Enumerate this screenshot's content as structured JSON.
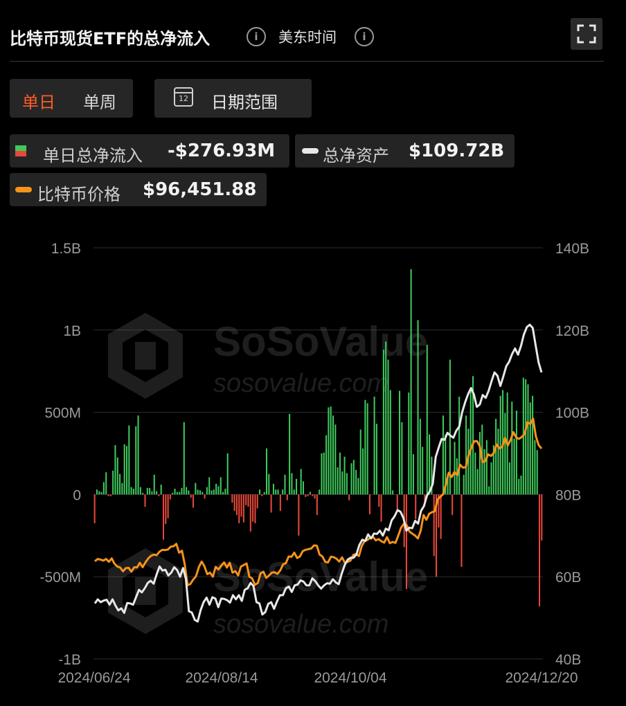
{
  "header": {
    "title": "比特币现货ETF的总净流入",
    "timezone": "美东时间"
  },
  "toggle": {
    "daily": "单日",
    "weekly": "单周",
    "active": "daily"
  },
  "range_button": {
    "label": "日期范围",
    "calendar_day": "12"
  },
  "legend": [
    {
      "label": "单日总净流入",
      "value": "-$276.93M",
      "icon": "green-red-square"
    },
    {
      "label": "总净资产",
      "value": "$109.72B",
      "icon": "white-line"
    },
    {
      "label": "比特币价格",
      "value": "$96,451.88",
      "icon": "orange-line"
    }
  ],
  "watermark": {
    "brand": "SoSoValue",
    "url": "sosovalue.com"
  },
  "colors": {
    "inflow": "#3ec95b",
    "outflow": "#e8483a",
    "assets": "#e8e8e8",
    "price": "#f7931a",
    "accent": "#ff5c2a"
  },
  "chart_data": {
    "type": "bar+line",
    "x_start": "2024/06/24",
    "x_end": "2024/12/20",
    "x_tick_labels": [
      "2024/06/24",
      "2024/08/14",
      "2024/10/04",
      "2024/12/20"
    ],
    "left_axis": {
      "ticks": [
        "1.5B",
        "1B",
        "500M",
        "0",
        "-500M",
        "-1B"
      ],
      "range_millions": [
        -1000,
        1500
      ]
    },
    "right_axis": {
      "ticks": [
        "140B",
        "120B",
        "100B",
        "80B",
        "60B",
        "40B"
      ],
      "range_billions": [
        40,
        140
      ]
    },
    "series": [
      {
        "type": "bar",
        "name": "单日总净流入",
        "unit": "USD millions",
        "values": [
          -175,
          30,
          20,
          15,
          75,
          135,
          -10,
          -10,
          145,
          300,
          225,
          125,
          70,
          305,
          295,
          420,
          45,
          35,
          415,
          480,
          45,
          10,
          -75,
          40,
          40,
          20,
          120,
          20,
          -10,
          60,
          -275,
          -180,
          -145,
          -30,
          10,
          35,
          15,
          15,
          40,
          440,
          45,
          25,
          -20,
          -80,
          70,
          30,
          25,
          15,
          -25,
          45,
          105,
          25,
          30,
          65,
          50,
          105,
          15,
          35,
          250,
          0,
          -50,
          -100,
          -125,
          -175,
          -135,
          -170,
          -65,
          -75,
          -225,
          -165,
          -175,
          -85,
          30,
          -10,
          15,
          280,
          125,
          -110,
          65,
          30,
          30,
          -100,
          30,
          120,
          -35,
          490,
          130,
          30,
          95,
          -250,
          155,
          80,
          -15,
          -10,
          15,
          -10,
          -25,
          -125,
          30,
          250,
          255,
          360,
          530,
          535,
          480,
          425,
          165,
          255,
          140,
          230,
          130,
          -35,
          190,
          210,
          150,
          100,
          395,
          280,
          575,
          555,
          -120,
          0,
          595,
          430,
          -75,
          -165,
          880,
          930,
          820,
          635,
          25,
          0,
          -90,
          630,
          440,
          -320,
          -575,
          620,
          1370,
          245,
          -150,
          1060,
          460,
          290,
          -50,
          910,
          365,
          230,
          -375,
          -500,
          -200,
          -270,
          480,
          365,
          125,
          820,
          -125,
          320,
          220,
          595,
          -440,
          120,
          480,
          400,
          650,
          720,
          255,
          155,
          380,
          425,
          275,
          330,
          50,
          195,
          300,
          460,
          400,
          600,
          635,
          495,
          620,
          195,
          565,
          340,
          510,
          95,
          115,
          710,
          700,
          670,
          560,
          600,
          330,
          270,
          -680,
          -280
        ]
      },
      {
        "type": "line",
        "name": "总净资产",
        "unit": "USD billions",
        "values": [
          53.5,
          54.5,
          53.8,
          54.2,
          54.4,
          53.2,
          54.5,
          53.0,
          51.8,
          52.3,
          51.2,
          53.6,
          53.5,
          53.2,
          55.0,
          56.8,
          56.2,
          57.2,
          58.5,
          59.0,
          58.3,
          60.5,
          62.5,
          61.5,
          61.7,
          60.3,
          61.0,
          62.3,
          61.6,
          60.0,
          62.1,
          59.4,
          51.6,
          51.3,
          49.5,
          49.1,
          51.9,
          53.8,
          54.9,
          53.2,
          55.0,
          54.7,
          52.6,
          54.7,
          54.6,
          54.3,
          53.7,
          55.5,
          54.5,
          55.5,
          54.1,
          56.8,
          57.2,
          58.5,
          57.7,
          53.8,
          53.5,
          50.8,
          51.4,
          53.4,
          53.8,
          52.2,
          54.0,
          55.5,
          55.5,
          57.2,
          57.6,
          56.3,
          57.9,
          58.1,
          59.1,
          58.8,
          57.9,
          57.9,
          59.6,
          58.9,
          57.9,
          57.1,
          57.9,
          58.4,
          58.3,
          59.4,
          58.6,
          58.2,
          60.7,
          62.8,
          64.1,
          64.6,
          64.6,
          65.4,
          67.7,
          69.0,
          68.7,
          70.3,
          69.3,
          70.5,
          70.4,
          71.2,
          70.0,
          71.7,
          71.3,
          73.7,
          74.7,
          76.2,
          75.8,
          74.3,
          71.2,
          71.9,
          71.8,
          73.6,
          72.9,
          76.0,
          77.2,
          79.7,
          80.8,
          82.6,
          89.1,
          91.4,
          93.5,
          93.3,
          95.0,
          94.3,
          93.8,
          95.5,
          96.5,
          100.0,
          102.4,
          104.4,
          105.9,
          104.3,
          101.3,
          101.9,
          104.2,
          103.5,
          105.2,
          107.6,
          109.7,
          108.9,
          106.4,
          108.7,
          111.2,
          112.3,
          114.2,
          115.5,
          114.0,
          116.1,
          118.9,
          120.7,
          121.3,
          120.5,
          116.3,
          112.1,
          109.7
        ]
      },
      {
        "type": "line",
        "name": "比特币价格",
        "unit": "USD thousands",
        "values": [
          60.9,
          61.6,
          61.4,
          61.1,
          61.6,
          60.7,
          61.8,
          60.1,
          59.2,
          58.9,
          57.7,
          58.7,
          58.8,
          57.6,
          59.0,
          58.9,
          60.4,
          59.0,
          60.5,
          61.8,
          62.6,
          63.0,
          62.8,
          63.9,
          64.5,
          64.4,
          64.6,
          65.5,
          65.6,
          66.4,
          63.6,
          64.2,
          59.9,
          53.3,
          53.7,
          55.1,
          56.1,
          59.0,
          60.8,
          59.3,
          56.8,
          57.3,
          56.0,
          59.1,
          58.3,
          59.5,
          60.5,
          58.9,
          60.4,
          57.3,
          57.8,
          56.4,
          59.2,
          59.7,
          60.2,
          56.0,
          55.4,
          53.4,
          54.0,
          57.1,
          57.6,
          55.6,
          56.4,
          57.3,
          57.4,
          56.9,
          58.0,
          59.9,
          60.3,
          62.4,
          62.3,
          63.6,
          61.9,
          62.4,
          64.1,
          64.5,
          64.7,
          64.9,
          65.9,
          65.8,
          63.0,
          62.4,
          60.7,
          60.5,
          62.3,
          62.2,
          61.7,
          60.8,
          62.1,
          60.4,
          60.7,
          61.1,
          62.9,
          63.2,
          62.5,
          65.7,
          67.2,
          67.6,
          68.3,
          68.6,
          67.5,
          67.9,
          67.2,
          66.8,
          68.5,
          66.6,
          67.0,
          66.7,
          69.0,
          71.5,
          72.7,
          72.3,
          70.3,
          69.6,
          69.0,
          68.1,
          70.6,
          75.5,
          74.0,
          75.9,
          76.4,
          76.7,
          80.4,
          81.3,
          82.1,
          85.4,
          88.9,
          87.5,
          89.1,
          88.1,
          91.4,
          90.5,
          90.6,
          94.3,
          96.8,
          98.8,
          98.9,
          97.3,
          92.2,
          92.6,
          94.7,
          94.2,
          95.1,
          97.8,
          96.6,
          97.0,
          99.9,
          97.5,
          99.3,
          101.7,
          100.0,
          99.6,
          100.2,
          101.2,
          104.8,
          104.3,
          106.0,
          100.3,
          97.6,
          96.5
        ]
      }
    ]
  }
}
